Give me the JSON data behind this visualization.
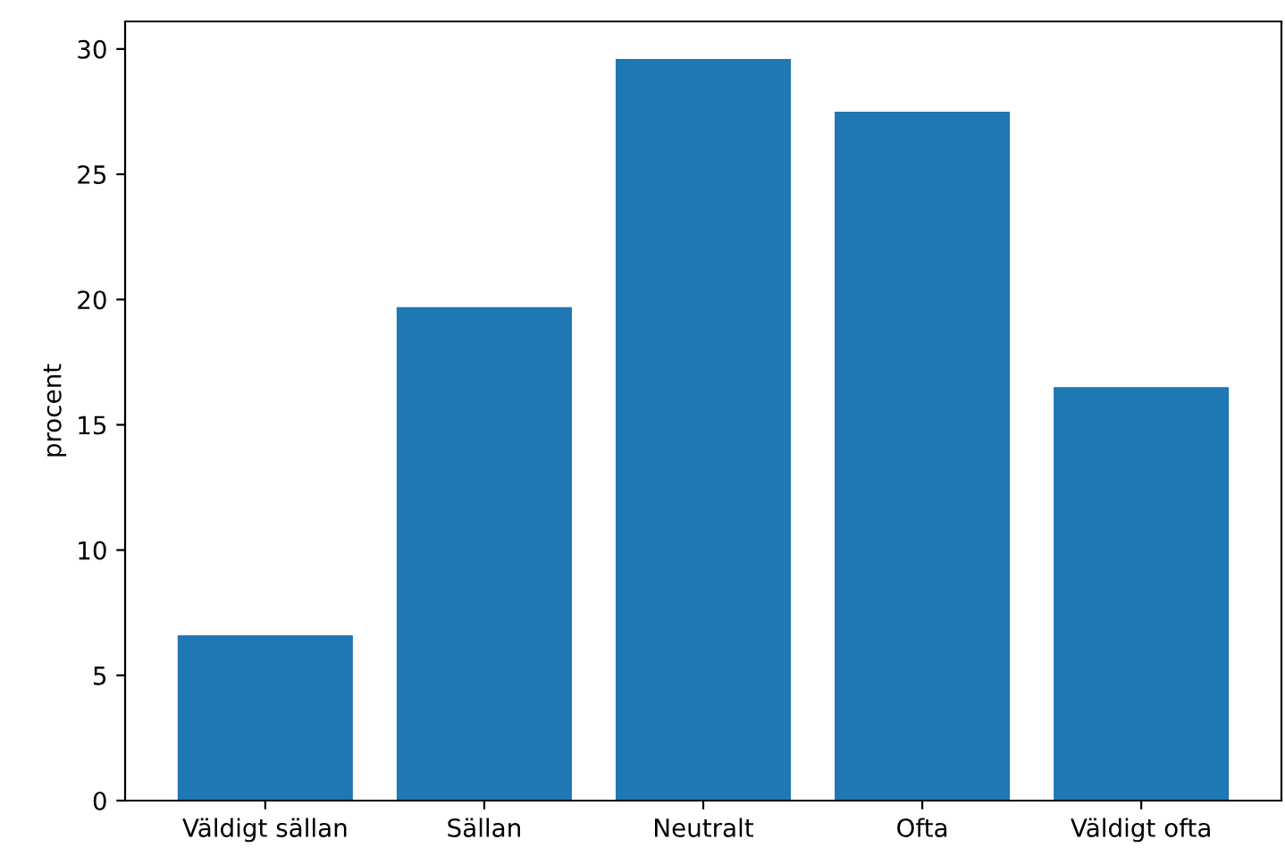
{
  "chart_data": {
    "type": "bar",
    "ylabel": "procent",
    "categories": [
      "Väldigt sällan",
      "Sällan",
      "Neutralt",
      "Ofta",
      "Väldigt ofta"
    ],
    "values": [
      6.6,
      19.7,
      29.6,
      27.5,
      16.5
    ],
    "color": "#1f77b4",
    "ylim": [
      0,
      31.1
    ],
    "yticks": [
      0,
      5,
      10,
      15,
      20,
      25,
      30
    ],
    "grid": false
  }
}
